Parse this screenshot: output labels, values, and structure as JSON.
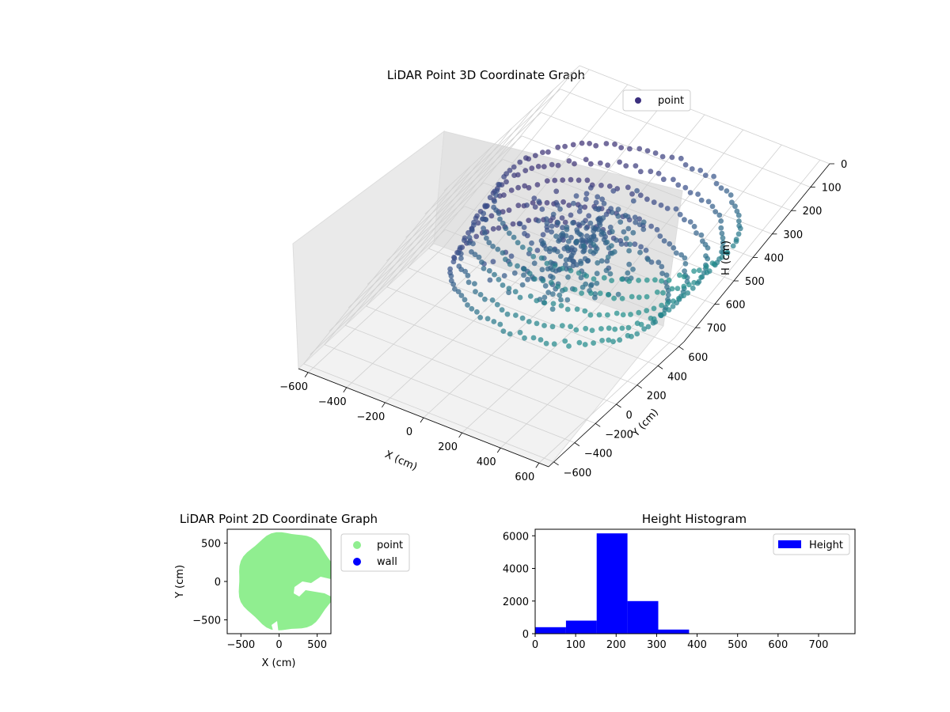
{
  "chart_data": [
    {
      "type": "scatter",
      "projection": "3d",
      "title": "LiDAR Point 3D Coordinate Graph",
      "xlabel": "X (cm)",
      "ylabel": "Y (cm)",
      "zlabel": "H (cm)",
      "xlim": [
        -650,
        650
      ],
      "ylim": [
        -650,
        650
      ],
      "zlim": [
        0,
        760
      ],
      "z_inverted": true,
      "xticks": [
        "−600",
        "−400",
        "−200",
        "0",
        "200",
        "400",
        "600"
      ],
      "yticks": [
        "−600",
        "−400",
        "−200",
        "0",
        "200",
        "400",
        "600"
      ],
      "zticks": [
        "0",
        "100",
        "200",
        "300",
        "400",
        "500",
        "600",
        "700"
      ],
      "colormap": "viridis",
      "legend": [
        "point"
      ],
      "legend_placement": "upper right",
      "series": [
        {
          "name": "point",
          "color": "#3b2f7e",
          "description_rings": [
            {
              "radius": 560,
              "height": 130
            },
            {
              "radius": 550,
              "height": 200
            },
            {
              "radius": 540,
              "height": 280
            },
            {
              "radius": 520,
              "height": 360
            },
            {
              "radius": 500,
              "height": 430
            }
          ],
          "notable_points": [
            {
              "x": 20,
              "y": 240,
              "h": 150
            },
            {
              "x": 120,
              "y": 120,
              "h": 230
            },
            {
              "x": 50,
              "y": -120,
              "h": 470
            }
          ]
        }
      ],
      "grid": true
    },
    {
      "type": "scatter",
      "title": "LiDAR Point 2D Coordinate Graph",
      "xlabel": "X (cm)",
      "ylabel": "Y (cm)",
      "xlim": [
        -680,
        680
      ],
      "ylim": [
        -680,
        680
      ],
      "xticks": [
        "−500",
        "0",
        "500"
      ],
      "yticks": [
        "−500",
        "0",
        "500"
      ],
      "legend": [
        "point",
        "wall"
      ],
      "legend_placement": "outside right",
      "series": [
        {
          "name": "point",
          "color": "#90ee90",
          "shape": "filled disc",
          "center": [
            100,
            0
          ],
          "radius": 640
        },
        {
          "name": "wall",
          "color": "#0000ff",
          "points": []
        }
      ]
    },
    {
      "type": "bar",
      "title": "Height Histogram",
      "xlim": [
        0,
        790
      ],
      "ylim": [
        0,
        6400
      ],
      "xticks": [
        "0",
        "100",
        "200",
        "300",
        "400",
        "500",
        "600",
        "700"
      ],
      "yticks": [
        "0",
        "2000",
        "4000",
        "6000"
      ],
      "legend": [
        "Height"
      ],
      "legend_placement": "upper right",
      "bin_edges": [
        0,
        76,
        152,
        228,
        304,
        380,
        456,
        532,
        608,
        684,
        760
      ],
      "series": [
        {
          "name": "Height",
          "color": "#0000ff",
          "values": [
            400,
            800,
            6150,
            2000,
            250,
            0,
            0,
            0,
            0,
            0
          ]
        }
      ]
    }
  ]
}
